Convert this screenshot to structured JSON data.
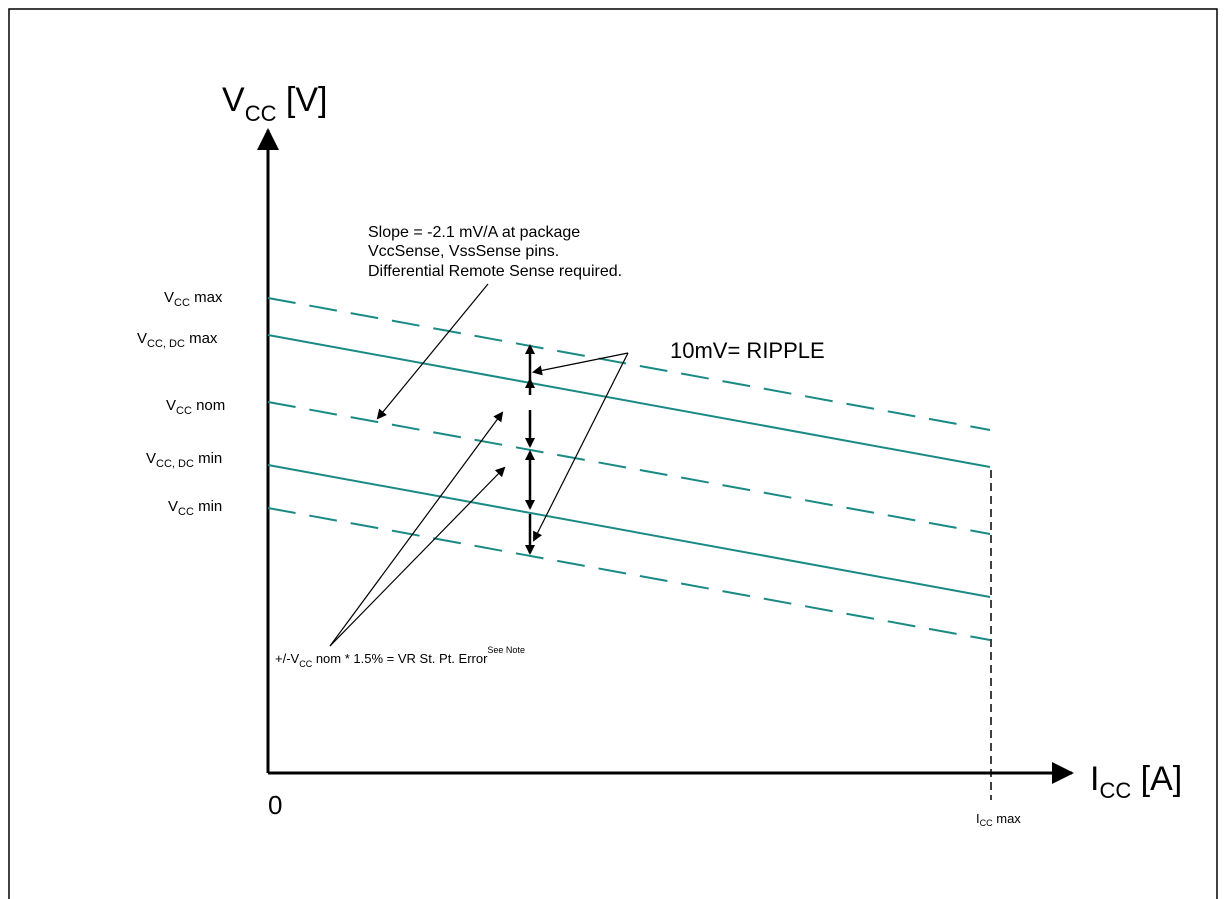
{
  "y_axis": {
    "title": "V",
    "title_sub": "CC",
    "title_unit": " [V]"
  },
  "x_axis": {
    "title": "I",
    "title_sub": "CC",
    "title_unit": " [A]",
    "origin_label": "0"
  },
  "levels": {
    "vcc_max": {
      "main": "V",
      "sub": "CC",
      "suffix": " max"
    },
    "vcc_dc_max": {
      "main": "V",
      "sub": "CC, DC",
      "suffix": " max"
    },
    "vcc_nom": {
      "main": "V",
      "sub": "CC",
      "suffix": " nom"
    },
    "vcc_dc_min": {
      "main": "V",
      "sub": "CC, DC",
      "suffix": " min"
    },
    "vcc_min": {
      "main": "V",
      "sub": "CC",
      "suffix": " min"
    }
  },
  "icc_max_label": {
    "main": "I",
    "sub": "CC",
    "suffix": " max"
  },
  "slope_note": [
    "Slope = -2.1 mV/A at package",
    "VccSense, VssSense pins.",
    " Differential Remote Sense required."
  ],
  "ripple_label": "10mV= RIPPLE",
  "error_note": {
    "prefix": "+/-V",
    "sub": "CC",
    "text": "  nom * 1.5% = VR St. Pt. Error",
    "sup": "See Note"
  },
  "line_color": "#1a8a85"
}
